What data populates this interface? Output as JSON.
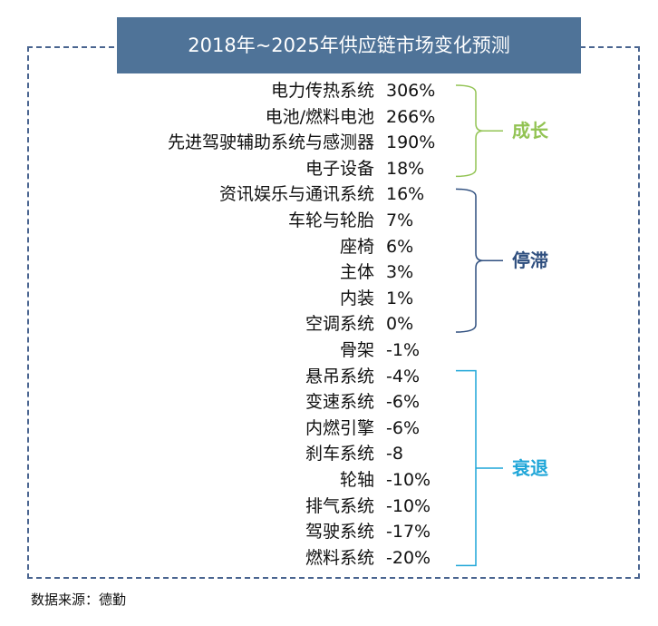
{
  "title": "2018年~2025年供应链市场变化预测",
  "source": "数据来源：德勤",
  "chart_data": {
    "type": "table",
    "title": "2018年~2025年供应链市场变化预测",
    "rows": [
      {
        "category": "电力传热系统",
        "value": "306%"
      },
      {
        "category": "电池/燃料电池",
        "value": "266%"
      },
      {
        "category": "先进驾驶辅助系统与感测器",
        "value": "190%"
      },
      {
        "category": "电子设备",
        "value": "18%"
      },
      {
        "category": "资讯娱乐与通讯系统",
        "value": "16%"
      },
      {
        "category": "车轮与轮胎",
        "value": "7%"
      },
      {
        "category": "座椅",
        "value": "6%"
      },
      {
        "category": "主体",
        "value": "3%"
      },
      {
        "category": "内装",
        "value": "1%"
      },
      {
        "category": "空调系统",
        "value": "0%"
      },
      {
        "category": "骨架",
        "value": "-1%"
      },
      {
        "category": "悬吊系统",
        "value": "-4%"
      },
      {
        "category": "变速系统",
        "value": "-6%"
      },
      {
        "category": "内燃引擎",
        "value": "-6%"
      },
      {
        "category": "刹车系统",
        "value": "-8"
      },
      {
        "category": "轮轴",
        "value": "-10%"
      },
      {
        "category": "排气系统",
        "value": "-10%"
      },
      {
        "category": "驾驶系统",
        "value": "-17%"
      },
      {
        "category": "燃料系统",
        "value": "-20%"
      }
    ],
    "groups": [
      {
        "label": "成长",
        "color": "#92c353",
        "start_index": 0,
        "end_index": 3,
        "bracket_shape": "curly"
      },
      {
        "label": "停滞",
        "color": "#2f4f7f",
        "start_index": 4,
        "end_index": 9,
        "bracket_shape": "curly"
      },
      {
        "label": "衰退",
        "color": "#1fa6d8",
        "start_index": 11,
        "end_index": 18,
        "bracket_shape": "square"
      }
    ]
  },
  "colors": {
    "title_bar": "#4f7398",
    "frame_border": "#4a6590"
  }
}
